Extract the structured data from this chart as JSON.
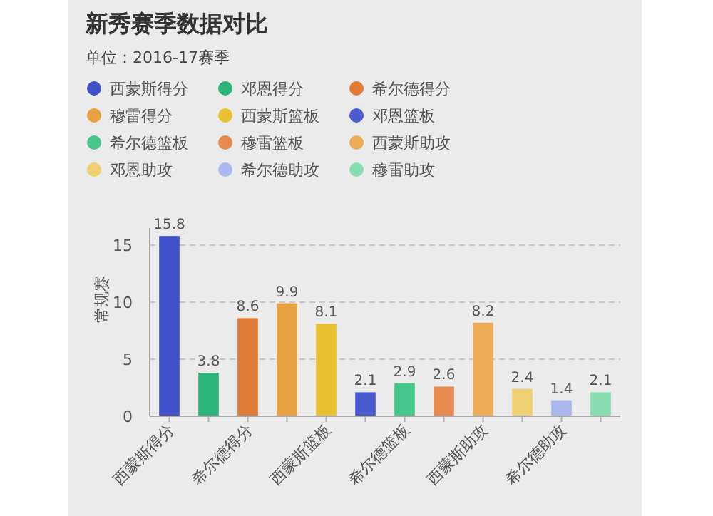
{
  "chart_data": {
    "type": "bar",
    "title": "新秀赛季数据对比",
    "subtitle": "单位：2016-17赛季",
    "ylabel": "常规赛",
    "categories": [
      "西蒙斯得分",
      null,
      "希尔德得分",
      null,
      "西蒙斯篮板",
      null,
      "希尔德篮板",
      null,
      "西蒙斯助攻",
      null,
      "希尔德助攻",
      null
    ],
    "series": [
      {
        "name": "西蒙斯得分",
        "color": "#3f51c8",
        "values": [
          15.8,
          null,
          null,
          null,
          null,
          null,
          null,
          null,
          null,
          null,
          null,
          null
        ]
      },
      {
        "name": "邓恩得分",
        "color": "#2bb57a",
        "values": [
          null,
          3.8,
          null,
          null,
          null,
          null,
          null,
          null,
          null,
          null,
          null,
          null
        ]
      },
      {
        "name": "希尔德得分",
        "color": "#e07a35",
        "values": [
          null,
          null,
          8.6,
          null,
          null,
          null,
          null,
          null,
          null,
          null,
          null,
          null
        ]
      },
      {
        "name": "穆雷得分",
        "color": "#e8a040",
        "values": [
          null,
          null,
          null,
          9.9,
          null,
          null,
          null,
          null,
          null,
          null,
          null,
          null
        ]
      },
      {
        "name": "西蒙斯篮板",
        "color": "#e8c030",
        "values": [
          null,
          null,
          null,
          null,
          8.1,
          null,
          null,
          null,
          null,
          null,
          null,
          null
        ]
      },
      {
        "name": "邓恩篮板",
        "color": "#4a5bd0",
        "values": [
          null,
          null,
          null,
          null,
          null,
          2.1,
          null,
          null,
          null,
          null,
          null,
          null
        ]
      },
      {
        "name": "希尔德篮板",
        "color": "#45c68a",
        "values": [
          null,
          null,
          null,
          null,
          null,
          null,
          2.9,
          null,
          null,
          null,
          null,
          null
        ]
      },
      {
        "name": "穆雷篮板",
        "color": "#e68a50",
        "values": [
          null,
          null,
          null,
          null,
          null,
          null,
          null,
          2.6,
          null,
          null,
          null,
          null
        ]
      },
      {
        "name": "西蒙斯助攻",
        "color": "#eeaa55",
        "values": [
          null,
          null,
          null,
          null,
          null,
          null,
          null,
          null,
          8.2,
          null,
          null,
          null
        ]
      },
      {
        "name": "邓恩助攻",
        "color": "#eed070",
        "values": [
          null,
          null,
          null,
          null,
          null,
          null,
          null,
          null,
          null,
          2.4,
          null,
          null
        ]
      },
      {
        "name": "希尔德助攻",
        "color": "#aab8ee",
        "values": [
          null,
          null,
          null,
          null,
          null,
          null,
          null,
          null,
          null,
          null,
          1.4,
          null
        ]
      },
      {
        "name": "穆雷助攻",
        "color": "#88ddb0",
        "values": [
          null,
          null,
          null,
          null,
          null,
          null,
          null,
          null,
          null,
          null,
          null,
          2.1
        ]
      }
    ],
    "ylim": [
      0,
      16.5
    ],
    "yticks": [
      0,
      5,
      10,
      15
    ],
    "grid": "y",
    "legend": "top left",
    "data_labels": true
  }
}
